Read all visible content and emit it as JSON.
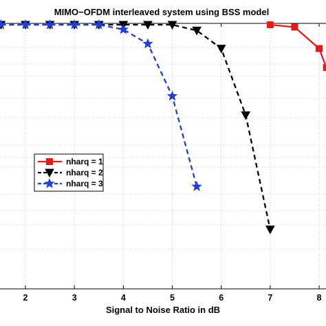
{
  "chart_data": {
    "type": "line",
    "title": "MIMO−OFDM interleaved system using BSS model",
    "xlabel": "Signal to Noise Ratio in dB",
    "ylabel": "",
    "xlim": [
      1.5,
      8.15
    ],
    "ylim": [
      -5.0,
      0.0
    ],
    "x_ticks": [
      2,
      3,
      4,
      5,
      6,
      7,
      8
    ],
    "x_tick_labels": [
      "2",
      "3",
      "4",
      "5",
      "6",
      "7",
      "8"
    ],
    "grid": true,
    "legend_position": "middle-left",
    "series": [
      {
        "name": "nharq = 1",
        "color": "#e41a1c",
        "line_style": "solid",
        "marker": "square",
        "x": [
          7.0,
          7.5,
          8.0,
          8.15
        ],
        "y": [
          0.0,
          -0.05,
          -0.5,
          -0.9
        ]
      },
      {
        "name": "nharq = 2",
        "color": "#000000",
        "line_style": "dashed",
        "marker": "triangle-down",
        "x": [
          1.5,
          2.0,
          2.5,
          3.0,
          3.5,
          4.0,
          4.5,
          5.0,
          5.5,
          6.0,
          6.5,
          7.0
        ],
        "y": [
          0.0,
          0.0,
          0.0,
          0.0,
          0.0,
          0.0,
          0.0,
          0.0,
          -0.12,
          -0.5,
          -1.9,
          -4.3
        ]
      },
      {
        "name": "nharq = 3",
        "color": "#1f3fd0",
        "line_style": "dashed",
        "marker": "star",
        "x": [
          1.5,
          2.0,
          2.5,
          3.0,
          3.5,
          4.0,
          4.5,
          5.0,
          5.5
        ],
        "y": [
          0.0,
          0.0,
          0.0,
          0.0,
          0.0,
          -0.1,
          -0.4,
          -1.5,
          -3.4
        ]
      }
    ]
  }
}
